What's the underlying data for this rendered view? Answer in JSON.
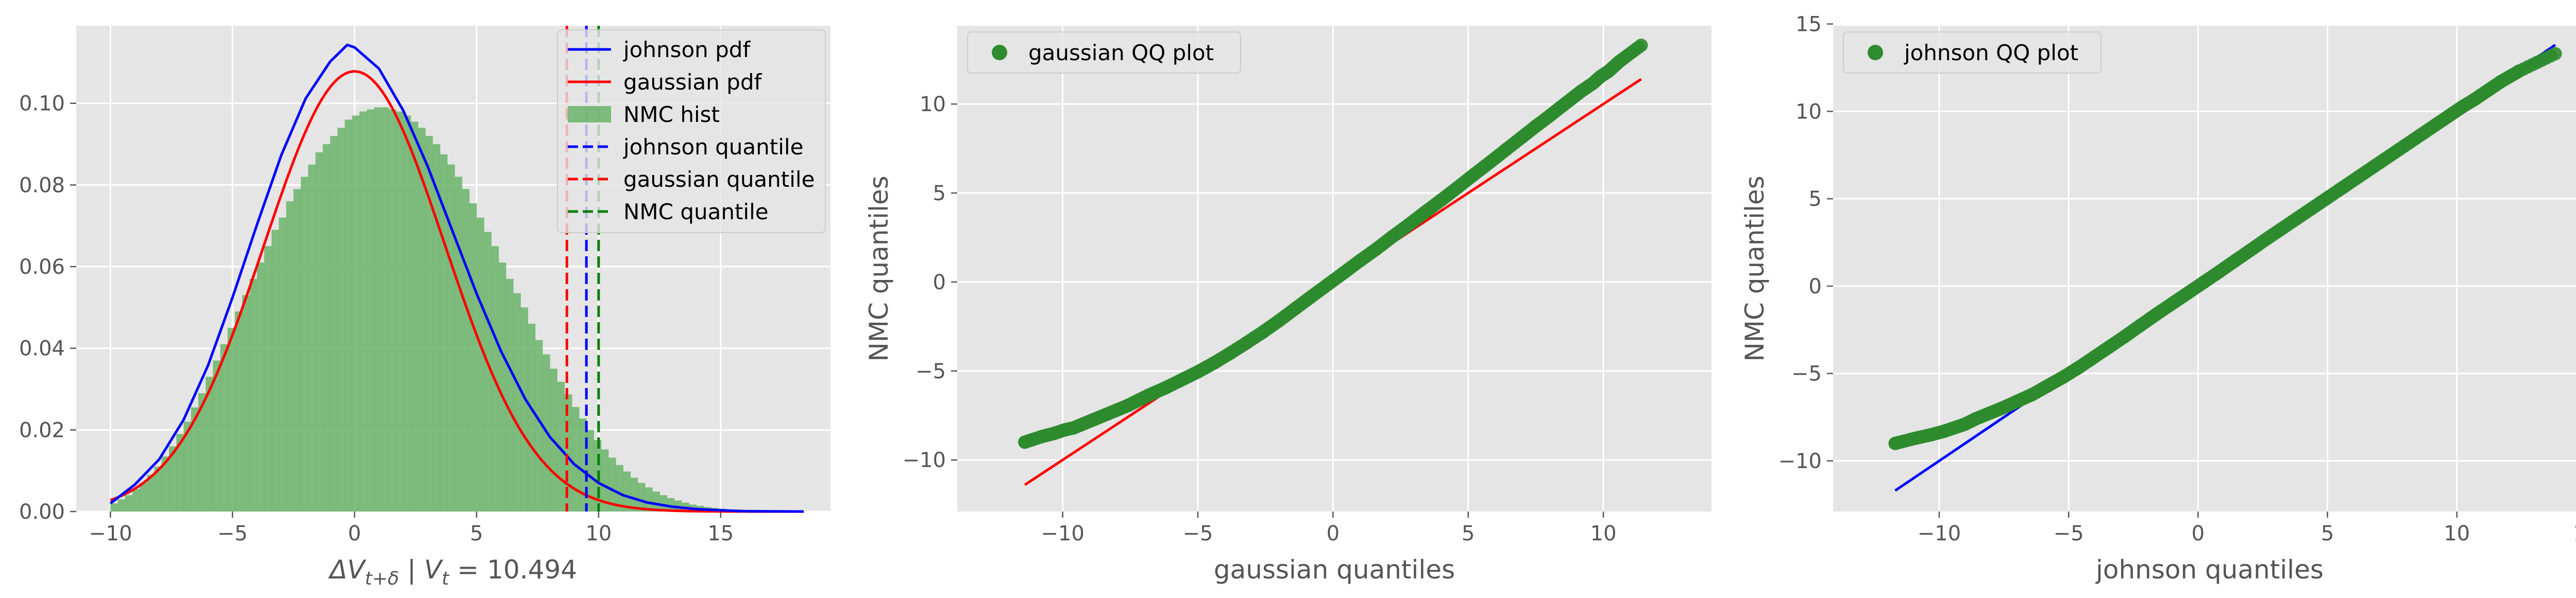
{
  "colors": {
    "panel_bg": "#e5e5e5",
    "grid": "#ffffff",
    "johnson": "#0000ff",
    "gaussian": "#ff0000",
    "nmc": "#008000",
    "hist": "#6ab46a",
    "scatter": "#2e8b2e"
  },
  "chart_data": [
    {
      "type": "histogram_with_pdfs",
      "xlabel": "ΔV",
      "xlabel_sub": "t+δ",
      "xlabel_mid": " | V",
      "xlabel_sub2": "t",
      "xlabel_tail": " = 10.494",
      "xlim": [
        -11.4,
        19.5
      ],
      "ylim": [
        0,
        0.119
      ],
      "xticks": [
        -10,
        -5,
        0,
        5,
        10,
        15
      ],
      "xtick_labels": [
        "−10",
        "−5",
        "0",
        "5",
        "10",
        "15"
      ],
      "yticks": [
        0,
        0.02,
        0.04,
        0.06,
        0.08,
        0.1
      ],
      "ytick_labels": [
        "0.00",
        "0.02",
        "0.04",
        "0.06",
        "0.08",
        "0.10"
      ],
      "legend_position": "top-right",
      "legend": [
        {
          "label": "johnson pdf",
          "kind": "line",
          "color": "#0000ff"
        },
        {
          "label": "gaussian pdf",
          "kind": "line",
          "color": "#ff0000"
        },
        {
          "label": "NMC hist",
          "kind": "patch",
          "color": "#6ab46a"
        },
        {
          "label": "johnson quantile",
          "kind": "dashed",
          "color": "#0000ff"
        },
        {
          "label": "gaussian quantile",
          "kind": "dashed",
          "color": "#ff0000"
        },
        {
          "label": "NMC quantile",
          "kind": "dashed",
          "color": "#008000"
        }
      ],
      "quantiles": {
        "gaussian": 8.7,
        "johnson": 9.5,
        "nmc": 10.0
      },
      "gaussian_pdf": {
        "mean": 0.0,
        "sd": 3.7
      },
      "johnson_pdf": {
        "x": [
          -10,
          -9,
          -8,
          -7,
          -6,
          -5,
          -4,
          -3,
          -2,
          -1,
          -0.3,
          0,
          1,
          2,
          3,
          4,
          5,
          6,
          7,
          8,
          9,
          10,
          11,
          12,
          13,
          14,
          15,
          16,
          17,
          18.4
        ],
        "y": [
          0.002,
          0.0066,
          0.0128,
          0.0225,
          0.0358,
          0.0524,
          0.0702,
          0.0873,
          0.1012,
          0.1102,
          0.1143,
          0.1137,
          0.1085,
          0.0982,
          0.0845,
          0.0689,
          0.0534,
          0.0393,
          0.0275,
          0.0183,
          0.0116,
          0.007,
          0.004,
          0.0022,
          0.0012,
          0.0006,
          0.0003,
          0.0001,
          5e-05,
          0.0
        ]
      },
      "hist": {
        "bin_start": -10.0,
        "bin_width": 0.3,
        "heights": [
          0.002,
          0.003,
          0.004,
          0.0055,
          0.007,
          0.009,
          0.011,
          0.0135,
          0.016,
          0.019,
          0.022,
          0.0255,
          0.029,
          0.033,
          0.037,
          0.041,
          0.045,
          0.049,
          0.053,
          0.057,
          0.061,
          0.065,
          0.069,
          0.072,
          0.076,
          0.079,
          0.082,
          0.085,
          0.088,
          0.09,
          0.092,
          0.094,
          0.096,
          0.097,
          0.098,
          0.0985,
          0.099,
          0.099,
          0.0985,
          0.098,
          0.097,
          0.0955,
          0.094,
          0.092,
          0.09,
          0.0875,
          0.085,
          0.082,
          0.079,
          0.0755,
          0.072,
          0.0685,
          0.065,
          0.061,
          0.057,
          0.0535,
          0.05,
          0.046,
          0.042,
          0.0385,
          0.035,
          0.0318,
          0.0287,
          0.0256,
          0.0228,
          0.02,
          0.0175,
          0.0152,
          0.0132,
          0.0114,
          0.0098,
          0.0083,
          0.007,
          0.0059,
          0.0049,
          0.004,
          0.0033,
          0.0027,
          0.0022,
          0.0017,
          0.0014,
          0.0011,
          0.0009,
          0.0007,
          0.0005,
          0.0004,
          0.0003,
          0.0002,
          0.0002,
          0.0001
        ]
      }
    },
    {
      "type": "scatter",
      "xlabel": "gaussian quantiles",
      "ylabel": "NMC quantiles",
      "xlim": [
        -13.9,
        14.0
      ],
      "ylim": [
        -12.9,
        14.4
      ],
      "xticks": [
        -10,
        -5,
        0,
        5,
        10
      ],
      "xtick_labels": [
        "−10",
        "−5",
        "0",
        "5",
        "10"
      ],
      "yticks": [
        -10,
        -5,
        0,
        5,
        10
      ],
      "ytick_labels": [
        "−10",
        "−5",
        "0",
        "5",
        "10"
      ],
      "legend_position": "top-left",
      "legend": [
        {
          "label": "gaussian QQ plot",
          "kind": "marker",
          "color": "#2e8b2e"
        }
      ],
      "reference_line": {
        "x": [
          -11.4,
          11.4
        ],
        "y": [
          -11.4,
          11.4
        ],
        "color": "#ff0000"
      },
      "points_x": [
        -11.4,
        -10.8,
        -10.3,
        -9.9,
        -9.6,
        -9.2,
        -8.8,
        -8.4,
        -8.0,
        -7.6,
        -7.2,
        -6.8,
        -6.2,
        -5.6,
        -5.0,
        -4.4,
        -3.8,
        -3.2,
        -2.6,
        -2.0,
        -1.4,
        -0.8,
        -0.2,
        0.4,
        1.0,
        1.6,
        2.2,
        2.8,
        3.4,
        4.0,
        4.6,
        5.2,
        5.8,
        6.4,
        7.0,
        7.5,
        8.0,
        8.4,
        8.8,
        9.2,
        9.6,
        9.9,
        10.2,
        10.6,
        11.4
      ],
      "points_y": [
        -9.0,
        -8.7,
        -8.5,
        -8.3,
        -8.2,
        -7.95,
        -7.7,
        -7.45,
        -7.2,
        -6.95,
        -6.65,
        -6.35,
        -5.95,
        -5.5,
        -5.05,
        -4.55,
        -4.0,
        -3.42,
        -2.82,
        -2.18,
        -1.5,
        -0.82,
        -0.15,
        0.52,
        1.2,
        1.85,
        2.55,
        3.22,
        3.92,
        4.6,
        5.3,
        6.02,
        6.72,
        7.44,
        8.15,
        8.75,
        9.32,
        9.8,
        10.27,
        10.74,
        11.15,
        11.55,
        11.85,
        12.4,
        13.3
      ]
    },
    {
      "type": "scatter",
      "xlabel": "johnson quantiles",
      "ylabel": "NMC quantiles",
      "xlim": [
        -14.1,
        15.0
      ],
      "ylim": [
        -12.9,
        14.9
      ],
      "xticks": [
        -10,
        -5,
        0,
        5,
        10,
        15
      ],
      "xtick_labels": [
        "−10",
        "−5",
        "0",
        "5",
        "10",
        "15"
      ],
      "yticks": [
        -10,
        -5,
        0,
        5,
        10,
        15
      ],
      "ytick_labels": [
        "−10",
        "−5",
        "0",
        "5",
        "10",
        "15"
      ],
      "legend_position": "top-left",
      "legend": [
        {
          "label": "johnson QQ plot",
          "kind": "marker",
          "color": "#2e8b2e"
        }
      ],
      "reference_line": {
        "x": [
          -11.7,
          13.8
        ],
        "y": [
          -11.7,
          13.8
        ],
        "color": "#0000ff"
      },
      "points_x": [
        -11.7,
        -10.9,
        -10.3,
        -9.8,
        -9.4,
        -9.0,
        -8.6,
        -8.1,
        -7.6,
        -7.0,
        -6.4,
        -5.8,
        -5.2,
        -4.6,
        -4.0,
        -3.4,
        -2.8,
        -2.2,
        -1.6,
        -1.0,
        -0.4,
        0.2,
        0.8,
        1.4,
        2.0,
        2.6,
        3.2,
        3.8,
        4.4,
        5.0,
        5.6,
        6.2,
        6.8,
        7.4,
        8.0,
        8.6,
        9.2,
        9.7,
        10.2,
        10.7,
        11.2,
        11.7,
        12.4,
        13.8
      ],
      "points_y": [
        -9.0,
        -8.7,
        -8.5,
        -8.3,
        -8.1,
        -7.9,
        -7.6,
        -7.3,
        -7.0,
        -6.6,
        -6.2,
        -5.7,
        -5.2,
        -4.65,
        -4.05,
        -3.45,
        -2.85,
        -2.22,
        -1.6,
        -1.0,
        -0.4,
        0.2,
        0.8,
        1.42,
        2.03,
        2.65,
        3.25,
        3.85,
        4.45,
        5.05,
        5.65,
        6.25,
        6.85,
        7.45,
        8.05,
        8.65,
        9.25,
        9.75,
        10.25,
        10.7,
        11.2,
        11.7,
        12.3,
        13.3
      ]
    }
  ]
}
